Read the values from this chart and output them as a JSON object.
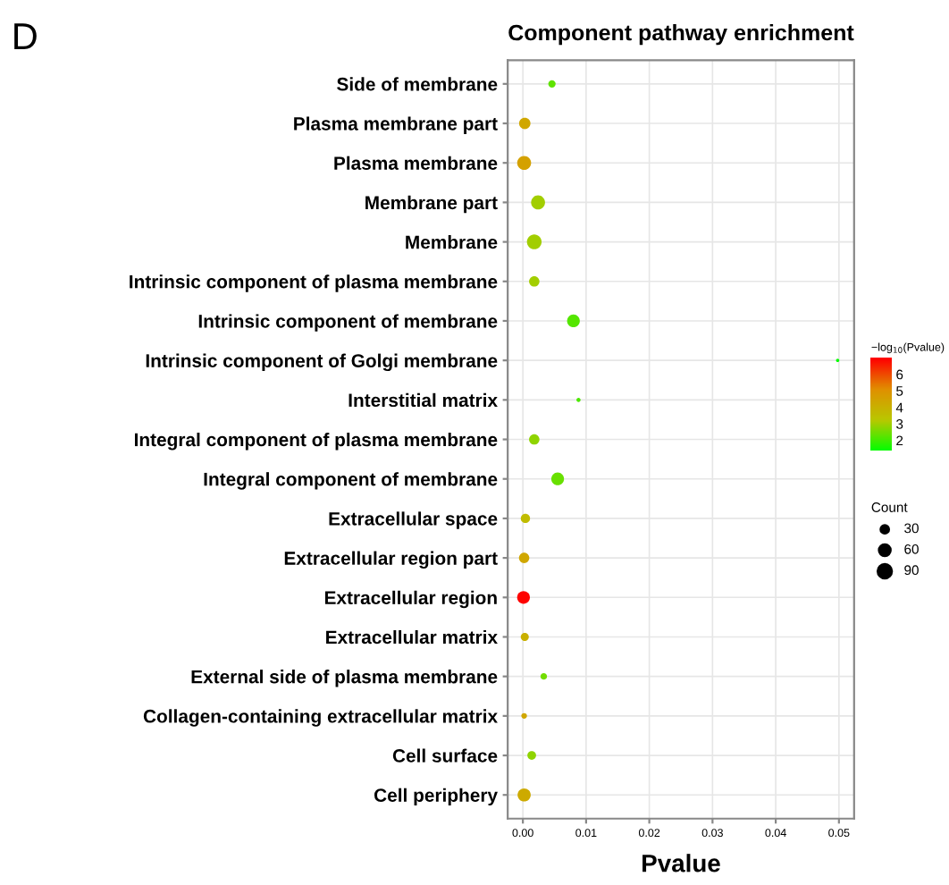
{
  "chart_data": {
    "type": "bubble",
    "title": "Component pathway enrichment",
    "xlabel": "Pvalue",
    "clabel": "−log$_{10}$(Pvalue)",
    "legend_title": "Count",
    "annotations": [
      "D"
    ],
    "categories": [
      "Side of membrane",
      "Plasma membrane part",
      "Plasma membrane",
      "Membrane part",
      "Membrane",
      "Intrinsic component of plasma membrane",
      "Intrinsic component of membrane",
      "Intrinsic component of Golgi membrane",
      "Interstitial matrix",
      "Integral component of plasma membrane",
      "Integral component of membrane",
      "Extracellular space",
      "Extracellular region part",
      "Extracellular region",
      "Extracellular matrix",
      "External side of plasma membrane",
      "Collagen-containing extracellular matrix",
      "Cell surface",
      "Cell periphery"
    ],
    "values": [
      0.0046,
      0.0003,
      0.0002,
      0.0024,
      0.0018,
      0.0018,
      0.008,
      0.0498,
      0.0088,
      0.0018,
      0.0055,
      0.0004,
      0.0002,
      0.0001,
      0.0003,
      0.0033,
      0.0002,
      0.0014,
      0.0002
    ],
    "cvalues": [
      2.3,
      4.3,
      4.5,
      3.0,
      3.0,
      3.0,
      2.2,
      1.4,
      2.1,
      2.8,
      2.4,
      3.6,
      4.3,
      6.9,
      4.0,
      2.5,
      4.3,
      2.8,
      4.2
    ],
    "sizes": [
      25,
      60,
      90,
      90,
      100,
      50,
      75,
      5,
      8,
      50,
      75,
      40,
      50,
      75,
      30,
      20,
      15,
      35,
      80
    ],
    "size_legend": [
      30,
      60,
      90
    ],
    "clim": [
      1.33,
      6.96
    ],
    "cticks": [
      2,
      3,
      4,
      5,
      6
    ],
    "xlim": [
      -0.0024,
      0.0524
    ],
    "xticks": [
      {
        "value": 0,
        "label": "0.00"
      },
      {
        "value": 0.01,
        "label": "0.01"
      },
      {
        "value": 0.02,
        "label": "0.02"
      },
      {
        "value": 0.03,
        "label": "0.03"
      },
      {
        "value": 0.04,
        "label": "0.04"
      },
      {
        "value": 0.05,
        "label": "0.05"
      }
    ],
    "grid": true,
    "orientation": "horizontal"
  }
}
